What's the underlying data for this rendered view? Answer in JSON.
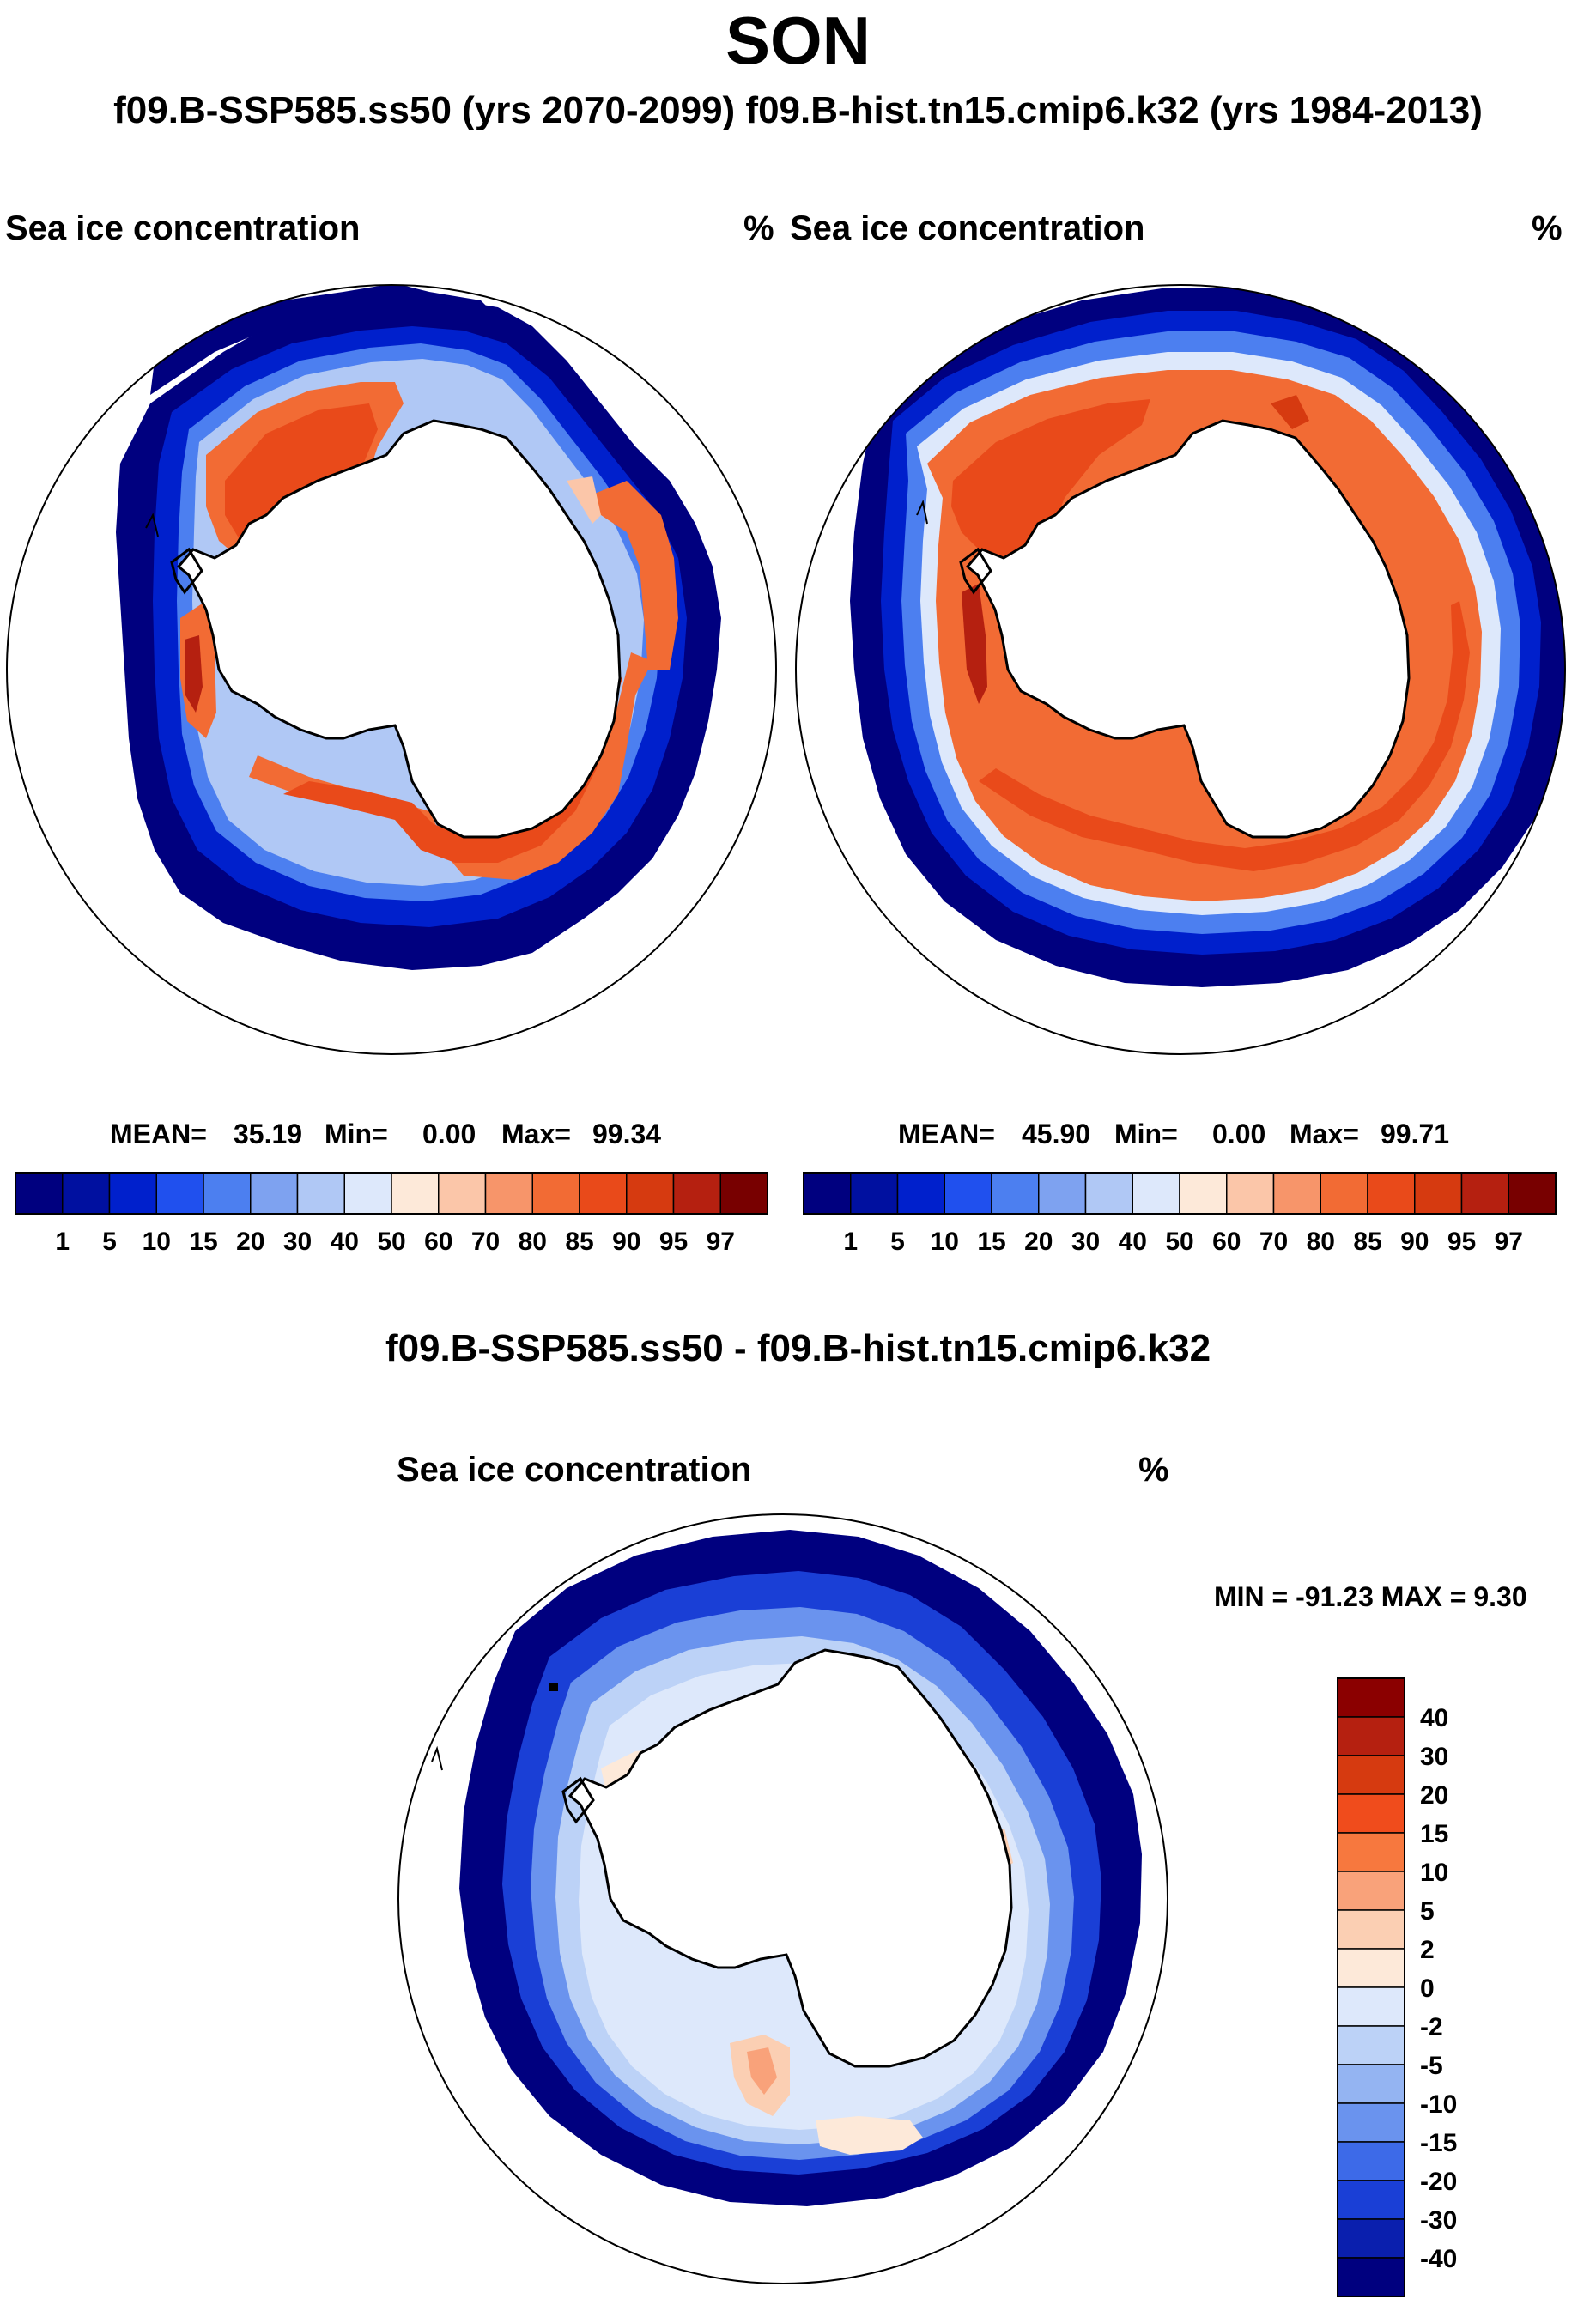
{
  "figure": {
    "season": "SON",
    "subtitle": "f09.B-SSP585.ss50 (yrs 2070-2099)  f09.B-hist.tn15.cmip6.k32 (yrs 1984-2013)",
    "diff_title": "f09.B-SSP585.ss50 - f09.B-hist.tn15.cmip6.k32"
  },
  "chart_data": [
    {
      "type": "heatmap",
      "projection": "south-polar-stereographic",
      "case": "f09.B-SSP585.ss50 (yrs 2070-2099)",
      "title_left": "Sea ice concentration",
      "units": "%",
      "stats": {
        "mean": "35.19",
        "min": "0.00",
        "max": "99.34"
      },
      "colorbar": {
        "orientation": "horizontal",
        "levels": [
          "1",
          "5",
          "10",
          "15",
          "20",
          "30",
          "40",
          "50",
          "60",
          "70",
          "80",
          "85",
          "90",
          "95",
          "97"
        ],
        "colors": [
          "#00007f",
          "#0010a0",
          "#0020cc",
          "#2050ee",
          "#4c7ff0",
          "#7ea2f0",
          "#b0c8f5",
          "#dde8fb",
          "#fde9d9",
          "#fbc6a9",
          "#f7956a",
          "#f26b34",
          "#e94a1a",
          "#d63a10",
          "#b52010",
          "#780000"
        ]
      },
      "summary": "Ice edge band (dark blue) encircles Antarctica; high concentration (orange/red) mainly in Weddell and Ross seas; reduced coverage compared to historical."
    },
    {
      "type": "heatmap",
      "projection": "south-polar-stereographic",
      "case": "f09.B-hist.tn15.cmip6.k32 (yrs 1984-2013)",
      "title_left": "Sea ice concentration",
      "units": "%",
      "stats": {
        "mean": "45.90",
        "min": "0.00",
        "max": "99.71"
      },
      "colorbar": {
        "orientation": "horizontal",
        "levels": [
          "1",
          "5",
          "10",
          "15",
          "20",
          "30",
          "40",
          "50",
          "60",
          "70",
          "80",
          "85",
          "90",
          "95",
          "97"
        ],
        "colors": [
          "#00007f",
          "#0010a0",
          "#0020cc",
          "#2050ee",
          "#4c7ff0",
          "#7ea2f0",
          "#b0c8f5",
          "#dde8fb",
          "#fde9d9",
          "#fbc6a9",
          "#f7956a",
          "#f26b34",
          "#e94a1a",
          "#d63a10",
          "#b52010",
          "#780000"
        ]
      },
      "summary": "Broad, continuous ring of high concentration (orange/red) around Antarctica bounded by a thin blue ice edge."
    },
    {
      "type": "heatmap",
      "projection": "south-polar-stereographic",
      "case": "f09.B-SSP585.ss50 - f09.B-hist.tn15.cmip6.k32",
      "title_left": "Sea ice concentration",
      "units": "%",
      "stats_text": "MIN = -91.23 MAX =   9.30",
      "stats": {
        "min": "-91.23",
        "max": "9.30"
      },
      "colorbar": {
        "orientation": "vertical",
        "levels": [
          "40",
          "30",
          "20",
          "15",
          "10",
          "5",
          "2",
          "0",
          "-2",
          "-5",
          "-10",
          "-15",
          "-20",
          "-30",
          "-40"
        ],
        "colors": [
          "#8b0000",
          "#b52010",
          "#d63a10",
          "#f04c1c",
          "#f7783e",
          "#f9a27a",
          "#fbcfb3",
          "#fde9d9",
          "#dde8fb",
          "#bcd2f7",
          "#94b4f2",
          "#6a93ee",
          "#3d6ae8",
          "#1a3fd6",
          "#0a1fae",
          "#00007f"
        ]
      },
      "summary": "Mostly negative (blue) change in a ring around Antarctica, strongest near the outer ice edge; small positive (light orange) patches in the Ross and Weddell seas."
    }
  ]
}
